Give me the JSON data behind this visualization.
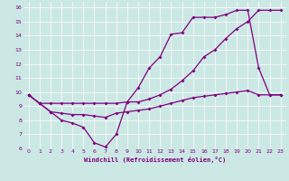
{
  "xlabel": "Windchill (Refroidissement éolien,°C)",
  "bg_color": "#cce8e4",
  "line_color": "#800080",
  "grid_color": "#ffffff",
  "xlim": [
    -0.5,
    23.5
  ],
  "ylim": [
    6,
    16.4
  ],
  "xticks": [
    0,
    1,
    2,
    3,
    4,
    5,
    6,
    7,
    8,
    9,
    10,
    11,
    12,
    13,
    14,
    15,
    16,
    17,
    18,
    19,
    20,
    21,
    22,
    23
  ],
  "yticks": [
    6,
    7,
    8,
    9,
    10,
    11,
    12,
    13,
    14,
    15,
    16
  ],
  "line1_x": [
    0,
    1,
    2,
    3,
    4,
    5,
    6,
    7,
    8,
    9,
    10,
    11,
    12,
    13,
    14,
    15,
    16,
    17,
    18,
    19,
    20,
    21,
    22,
    23
  ],
  "line1_y": [
    9.8,
    9.2,
    8.6,
    8.0,
    7.8,
    7.5,
    6.4,
    6.1,
    7.0,
    9.3,
    10.3,
    11.7,
    12.5,
    14.1,
    14.2,
    15.3,
    15.3,
    15.3,
    15.5,
    15.8,
    15.8,
    11.7,
    9.8,
    9.8
  ],
  "line2_x": [
    0,
    1,
    2,
    3,
    4,
    5,
    6,
    7,
    8,
    9,
    10,
    11,
    12,
    13,
    14,
    15,
    16,
    17,
    18,
    19,
    20,
    21,
    22,
    23
  ],
  "line2_y": [
    9.8,
    9.2,
    9.2,
    9.2,
    9.2,
    9.2,
    9.2,
    9.2,
    9.2,
    9.3,
    9.3,
    9.5,
    9.8,
    10.2,
    10.8,
    11.5,
    12.5,
    13.0,
    13.8,
    14.5,
    15.0,
    15.8,
    15.8,
    15.8
  ],
  "line3_x": [
    0,
    1,
    2,
    3,
    4,
    5,
    6,
    7,
    8,
    9,
    10,
    11,
    12,
    13,
    14,
    15,
    16,
    17,
    18,
    19,
    20,
    21,
    22,
    23
  ],
  "line3_y": [
    9.8,
    9.2,
    8.6,
    8.5,
    8.4,
    8.4,
    8.3,
    8.2,
    8.5,
    8.6,
    8.7,
    8.8,
    9.0,
    9.2,
    9.4,
    9.6,
    9.7,
    9.8,
    9.9,
    10.0,
    10.1,
    9.8,
    9.8,
    9.8
  ]
}
